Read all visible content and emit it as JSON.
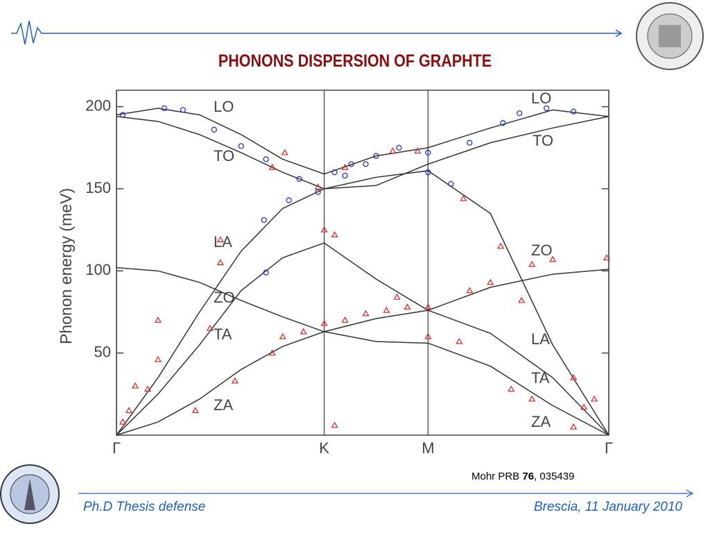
{
  "header": {
    "title": "PHONONS DISPERSION OF GRAPHTE"
  },
  "citation": {
    "before": "Mohr PRB ",
    "volume": "76",
    "after": ", 035439"
  },
  "footer": {
    "left": "Ph.D Thesis defense",
    "right": "Brescia, 11 January 2010"
  },
  "chart_data": {
    "type": "line",
    "ylabel": "Phonon energy (meV)",
    "xlim": [
      0,
      2.37
    ],
    "ylim": [
      0,
      210
    ],
    "xticks": [
      {
        "value": 0,
        "label": "Γ"
      },
      {
        "value": 1,
        "label": "K"
      },
      {
        "value": 1.5,
        "label": "M"
      },
      {
        "value": 2.37,
        "label": "Γ"
      }
    ],
    "yticks": [
      50,
      100,
      150,
      200
    ],
    "annotations": [
      "LO",
      "TO",
      "LA",
      "ZO",
      "TA",
      "ZA",
      "LO",
      "TO",
      "ZO",
      "LA",
      "TA",
      "ZA"
    ],
    "series": [
      {
        "marker": "line",
        "color": "#333333",
        "x": [
          0,
          0.2,
          0.4,
          0.6,
          0.8,
          1,
          1.25,
          1.5,
          1.8,
          2.1,
          2.37
        ],
        "values": [
          195,
          199,
          195,
          183,
          168,
          159,
          170,
          175,
          187,
          198,
          194
        ]
      },
      {
        "marker": "line",
        "color": "#333333",
        "x": [
          0,
          0.2,
          0.4,
          0.6,
          0.8,
          1,
          1.25,
          1.5,
          1.8,
          2.1,
          2.37
        ],
        "values": [
          194,
          191,
          183,
          172,
          160,
          150,
          152,
          165,
          178,
          187,
          194
        ]
      },
      {
        "marker": "line",
        "color": "#333333",
        "x": [
          0,
          0.2,
          0.4,
          0.6,
          0.8,
          1,
          1.25,
          1.5,
          1.8,
          2.1,
          2.37
        ],
        "values": [
          0,
          35,
          75,
          112,
          138,
          150,
          157,
          161,
          135,
          55,
          0
        ]
      },
      {
        "marker": "line",
        "color": "#333333",
        "x": [
          0,
          0.2,
          0.4,
          0.6,
          0.8,
          1,
          1.25,
          1.5,
          1.8,
          2.1,
          2.37
        ],
        "values": [
          0,
          25,
          55,
          88,
          108,
          117,
          95,
          76,
          62,
          35,
          0
        ]
      },
      {
        "marker": "line",
        "color": "#333333",
        "x": [
          0,
          0.2,
          0.4,
          0.6,
          0.8,
          1,
          1.25,
          1.5,
          1.8,
          2.1,
          2.37
        ],
        "values": [
          0,
          8,
          22,
          40,
          54,
          63,
          71,
          76,
          90,
          98,
          101
        ]
      },
      {
        "marker": "line",
        "color": "#333333",
        "x": [
          0,
          0.2,
          0.4,
          0.6,
          0.8,
          1,
          1.25,
          1.5,
          1.8,
          2.1,
          2.37
        ],
        "values": [
          102,
          100,
          93,
          82,
          72,
          63,
          57,
          56,
          42,
          18,
          0
        ]
      },
      {
        "marker": "circle",
        "color": "#2233cc",
        "x": [
          0.03,
          0.23,
          0.32,
          0.47,
          0.6,
          0.72,
          0.88,
          0.97,
          1.05,
          1.13,
          1.25,
          1.36,
          1.5,
          1.5,
          1.61,
          1.7,
          1.86,
          1.94,
          2.07,
          2.2,
          0.71,
          0.72,
          0.83,
          1.1,
          1.2
        ],
        "values": [
          195,
          199,
          198,
          186,
          176,
          168,
          156,
          148,
          160,
          165,
          170,
          175,
          172,
          160,
          153,
          178,
          190,
          196,
          199,
          197,
          131,
          99,
          143,
          158,
          165
        ]
      },
      {
        "marker": "triangle",
        "color": "#e02020",
        "x": [
          0.03,
          0.06,
          0.09,
          0.15,
          0.2,
          0.2,
          0.5,
          0.5,
          0.45,
          0.57,
          0.38,
          0.75,
          0.8,
          0.9,
          1.0,
          1.0,
          1.05,
          1.1,
          1.2,
          1.3,
          1.35,
          1.4,
          1.5,
          1.5,
          1.65,
          1.7,
          1.8,
          1.95,
          2.0,
          2.0,
          2.1,
          2.2,
          2.25,
          2.3,
          2.36,
          0.75,
          0.81,
          0.97,
          1.1,
          1.33,
          1.67,
          1.85,
          1.45,
          1.05,
          2.2,
          1.9
        ],
        "values": [
          8,
          15,
          30,
          28,
          70,
          46,
          119,
          105,
          65,
          33,
          15,
          50,
          60,
          63,
          68,
          125,
          122,
          70,
          74,
          76,
          84,
          78,
          78,
          60,
          57,
          88,
          93,
          82,
          104,
          22,
          107,
          35,
          17,
          22,
          108,
          163,
          172,
          151,
          163,
          173,
          144,
          115,
          173,
          6,
          5,
          28
        ]
      }
    ]
  }
}
